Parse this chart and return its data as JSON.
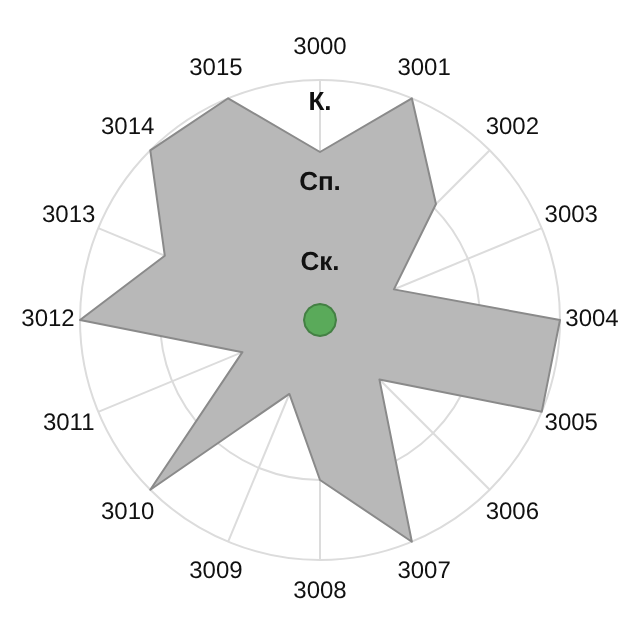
{
  "chart_data": {
    "type": "radar",
    "categories": [
      "3000",
      "3001",
      "3002",
      "3003",
      "3004",
      "3005",
      "3006",
      "3007",
      "3008",
      "3009",
      "3010",
      "3011",
      "3012",
      "3013",
      "3014",
      "3015"
    ],
    "series": [
      {
        "color": "#b8b8b8",
        "values": [
          2.1,
          3,
          2.05,
          1,
          3,
          3,
          1.05,
          3,
          2,
          1,
          3,
          1.05,
          3,
          2.1,
          3,
          3
        ]
      },
      {
        "color": "#5aaa5a",
        "values": [
          0.2,
          0.2,
          0.2,
          0.2,
          0.2,
          0.2,
          0.2,
          0.2,
          0.2,
          0.2,
          0.2,
          0.2,
          0.2,
          0.2,
          0.2,
          0.2
        ]
      }
    ],
    "ylim": [
      0,
      3
    ],
    "yticks": [
      {
        "value": 1,
        "label": "Ск."
      },
      {
        "value": 2,
        "label": "Сп."
      },
      {
        "value": 3,
        "label": "К."
      }
    ],
    "grid": true
  }
}
